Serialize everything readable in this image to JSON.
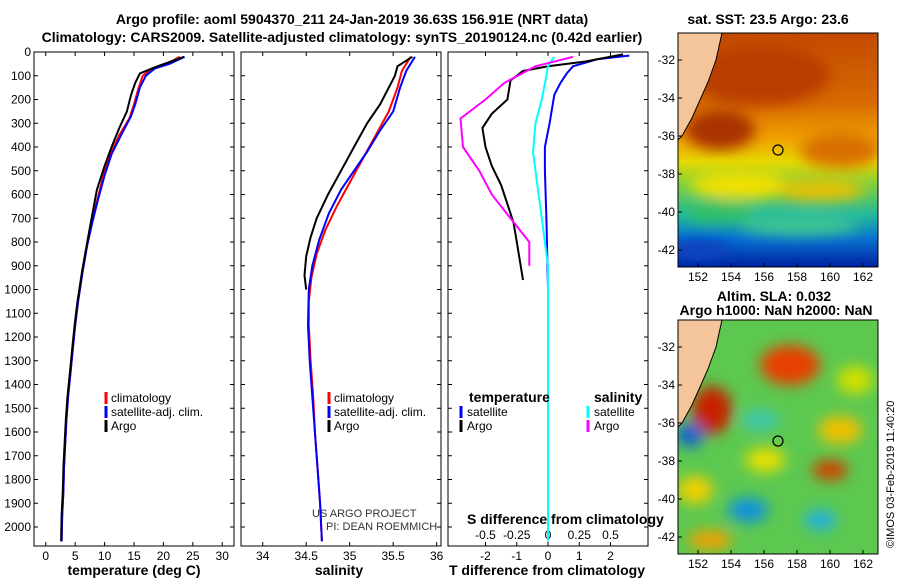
{
  "header": {
    "line1": "Argo profile: aoml 5904370_211 24-Jan-2019 36.63S 156.91E (NRT data)",
    "line2": "Climatology: CARS2009. Satellite-adjusted climatology: synTS_20190124.nc (0.42d earlier)"
  },
  "colors": {
    "climatology": "#ff0000",
    "satellite": "#0000ff",
    "argo": "#000000",
    "sat_salinity": "#00ffff",
    "salinity": "#ff00ff",
    "land": "#f4c49a"
  },
  "chart_data": [
    {
      "type": "line",
      "name": "temperature-panel",
      "xlabel": "temperature (deg C)",
      "xlim": [
        -2,
        32
      ],
      "xticks": [
        "0",
        "5",
        "10",
        "15",
        "20",
        "25",
        "30"
      ],
      "ylim": [
        0,
        2080
      ],
      "yticks": [
        "0",
        "100",
        "200",
        "300",
        "400",
        "500",
        "600",
        "700",
        "800",
        "900",
        "1000",
        "1100",
        "1200",
        "1300",
        "1400",
        "1500",
        "1600",
        "1700",
        "1800",
        "1900",
        "2000"
      ],
      "legend": [
        "climatology",
        "satellite-adj. clim.",
        "Argo"
      ],
      "series": [
        {
          "name": "climatology",
          "points": [
            [
              22.8,
              20
            ],
            [
              20.5,
              50
            ],
            [
              18,
              70
            ],
            [
              16.5,
              100
            ],
            [
              15.8,
              150
            ],
            [
              15,
              220
            ],
            [
              14.2,
              280
            ],
            [
              12.5,
              350
            ],
            [
              11,
              430
            ],
            [
              9.8,
              520
            ],
            [
              8.8,
              620
            ],
            [
              7.8,
              720
            ],
            [
              7,
              820
            ],
            [
              6.3,
              920
            ],
            [
              5.5,
              1050
            ],
            [
              5,
              1150
            ],
            [
              4.6,
              1250
            ],
            [
              4.2,
              1350
            ],
            [
              3.8,
              1450
            ],
            [
              3.5,
              1550
            ],
            [
              3.3,
              1650
            ],
            [
              3.1,
              1750
            ],
            [
              3,
              1850
            ],
            [
              2.8,
              1950
            ],
            [
              2.7,
              2060
            ]
          ]
        },
        {
          "name": "satellite-adj. clim.",
          "points": [
            [
              23.6,
              20
            ],
            [
              21,
              50
            ],
            [
              18.5,
              70
            ],
            [
              17,
              100
            ],
            [
              16,
              150
            ],
            [
              15.2,
              220
            ],
            [
              14.5,
              270
            ],
            [
              12.8,
              350
            ],
            [
              11.2,
              430
            ],
            [
              10,
              520
            ],
            [
              8.9,
              620
            ],
            [
              7.9,
              720
            ],
            [
              7,
              820
            ],
            [
              6.3,
              920
            ],
            [
              5.5,
              1050
            ],
            [
              5,
              1150
            ],
            [
              4.6,
              1250
            ],
            [
              4.2,
              1350
            ],
            [
              3.8,
              1450
            ],
            [
              3.5,
              1550
            ],
            [
              3.3,
              1650
            ],
            [
              3.1,
              1750
            ],
            [
              3,
              1850
            ],
            [
              2.8,
              1950
            ],
            [
              2.7,
              2060
            ]
          ]
        },
        {
          "name": "Argo",
          "points": [
            [
              23.5,
              20
            ],
            [
              19,
              60
            ],
            [
              16,
              90
            ],
            [
              15.2,
              130
            ],
            [
              14.5,
              180
            ],
            [
              13.8,
              250
            ],
            [
              12.5,
              320
            ],
            [
              11.2,
              400
            ],
            [
              10,
              480
            ],
            [
              8.7,
              580
            ],
            [
              7.8,
              700
            ],
            [
              6.9,
              820
            ],
            [
              6.2,
              920
            ],
            [
              5.4,
              1050
            ],
            [
              4.9,
              1150
            ],
            [
              4.5,
              1250
            ],
            [
              4.1,
              1350
            ],
            [
              3.7,
              1450
            ],
            [
              3.4,
              1550
            ],
            [
              3.2,
              1650
            ],
            [
              3,
              1750
            ],
            [
              2.9,
              1850
            ],
            [
              2.7,
              1950
            ],
            [
              2.6,
              2060
            ]
          ]
        }
      ]
    },
    {
      "type": "line",
      "name": "salinity-panel",
      "xlabel": "salinity",
      "xlim": [
        33.75,
        36.05
      ],
      "xticks": [
        "34",
        "34.5",
        "35",
        "35.5",
        "36"
      ],
      "ylim": [
        0,
        2080
      ],
      "legend": [
        "climatology",
        "satellite-adj. clim.",
        "Argo"
      ],
      "series": [
        {
          "name": "climatology",
          "points": [
            [
              35.7,
              20
            ],
            [
              35.6,
              80
            ],
            [
              35.55,
              150
            ],
            [
              35.45,
              250
            ],
            [
              35.3,
              350
            ],
            [
              35.15,
              450
            ],
            [
              35,
              550
            ],
            [
              34.85,
              650
            ],
            [
              34.72,
              750
            ],
            [
              34.62,
              850
            ],
            [
              34.56,
              950
            ],
            [
              34.53,
              1050
            ],
            [
              34.53,
              1150
            ],
            [
              34.55,
              1300
            ],
            [
              34.58,
              1450
            ],
            [
              34.6,
              1600
            ],
            [
              34.63,
              1750
            ],
            [
              34.66,
              1900
            ],
            [
              34.68,
              2060
            ]
          ]
        },
        {
          "name": "satellite-adj. clim.",
          "points": [
            [
              35.75,
              20
            ],
            [
              35.65,
              80
            ],
            [
              35.58,
              150
            ],
            [
              35.5,
              250
            ],
            [
              35.35,
              330
            ],
            [
              35.2,
              420
            ],
            [
              35.05,
              500
            ],
            [
              34.9,
              580
            ],
            [
              34.76,
              680
            ],
            [
              34.65,
              790
            ],
            [
              34.57,
              900
            ],
            [
              34.53,
              1000
            ],
            [
              34.52,
              1150
            ],
            [
              34.54,
              1300
            ],
            [
              34.57,
              1450
            ],
            [
              34.6,
              1600
            ],
            [
              34.63,
              1750
            ],
            [
              34.66,
              1900
            ],
            [
              34.68,
              2060
            ]
          ]
        },
        {
          "name": "Argo",
          "points": [
            [
              35.72,
              20
            ],
            [
              35.55,
              60
            ],
            [
              35.52,
              100
            ],
            [
              35.45,
              150
            ],
            [
              35.35,
              220
            ],
            [
              35.2,
              300
            ],
            [
              35.05,
              400
            ],
            [
              34.9,
              500
            ],
            [
              34.75,
              600
            ],
            [
              34.62,
              700
            ],
            [
              34.55,
              780
            ],
            [
              34.5,
              860
            ],
            [
              34.48,
              940
            ],
            [
              34.5,
              1000
            ]
          ]
        }
      ]
    },
    {
      "type": "line",
      "name": "difference-panel",
      "xlabel": "T difference from climatology",
      "s_label": "S difference from climatology",
      "xlim": [
        -3.2,
        3.2
      ],
      "xticks": [
        "-2",
        "-1",
        "0",
        "1",
        "2"
      ],
      "s_xticks": [
        "-0.5",
        "-0.25",
        "0",
        "0.25",
        "0.5"
      ],
      "ylim": [
        0,
        2080
      ],
      "legend_left_title": "temperature",
      "legend_right_title": "salinity",
      "legend_left": [
        "satellite",
        "Argo"
      ],
      "legend_right": [
        "satellite",
        "Argo"
      ],
      "series": [
        {
          "name": "temperature satellite",
          "points": [
            [
              2.6,
              15
            ],
            [
              1.6,
              30
            ],
            [
              0.8,
              60
            ],
            [
              0.6,
              90
            ],
            [
              0.4,
              130
            ],
            [
              0.2,
              180
            ],
            [
              0.05,
              300
            ],
            [
              -0.1,
              400
            ],
            [
              -0.1,
              500
            ],
            [
              -0.05,
              700
            ],
            [
              0,
              1000
            ],
            [
              0,
              1100
            ],
            [
              0,
              2060
            ]
          ]
        },
        {
          "name": "Argo",
          "points": [
            [
              2.4,
              10
            ],
            [
              1.2,
              40
            ],
            [
              0,
              60
            ],
            [
              -0.8,
              80
            ],
            [
              -1.2,
              120
            ],
            [
              -1.3,
              200
            ],
            [
              -1.8,
              260
            ],
            [
              -2.1,
              320
            ],
            [
              -2,
              400
            ],
            [
              -1.8,
              480
            ],
            [
              -1.5,
              560
            ],
            [
              -1.3,
              640
            ],
            [
              -1.1,
              720
            ],
            [
              -1,
              800
            ],
            [
              -0.9,
              880
            ],
            [
              -0.8,
              960
            ]
          ]
        },
        {
          "name": "salinity satellite",
          "points": [
            [
              0.05,
              20
            ],
            [
              0,
              60
            ],
            [
              -0.02,
              120
            ],
            [
              -0.05,
              200
            ],
            [
              -0.1,
              300
            ],
            [
              -0.12,
              420
            ],
            [
              -0.1,
              500
            ],
            [
              -0.05,
              700
            ],
            [
              0,
              900
            ],
            [
              0,
              1100
            ],
            [
              0,
              2060
            ]
          ]
        },
        {
          "name": "salinity Argo",
          "points": [
            [
              0.2,
              20
            ],
            [
              -0.1,
              60
            ],
            [
              -0.35,
              130
            ],
            [
              -0.5,
              200
            ],
            [
              -0.7,
              280
            ],
            [
              -0.68,
              400
            ],
            [
              -0.55,
              500
            ],
            [
              -0.45,
              600
            ],
            [
              -0.3,
              700
            ],
            [
              -0.15,
              800
            ],
            [
              -0.15,
              900
            ]
          ]
        }
      ]
    }
  ],
  "maps": {
    "sst": {
      "title": "sat. SST: 23.5 Argo: 23.6",
      "xticks": [
        "152",
        "154",
        "156",
        "158",
        "160",
        "162"
      ],
      "yticks": [
        "-32",
        "-34",
        "-36",
        "-38",
        "-40",
        "-42"
      ]
    },
    "sla": {
      "title_line1": "Altim. SLA: 0.032",
      "title_line2": "Argo h1000: NaN h2000: NaN",
      "xticks": [
        "152",
        "154",
        "156",
        "158",
        "160",
        "162"
      ],
      "yticks": [
        "-32",
        "-34",
        "-36",
        "-38",
        "-40",
        "-42"
      ]
    }
  },
  "credits": {
    "project": "US ARGO PROJECT",
    "pi": "PI: DEAN ROEMMICH",
    "stamp": "©IMOS 03-Feb-2019 11:40:20"
  }
}
